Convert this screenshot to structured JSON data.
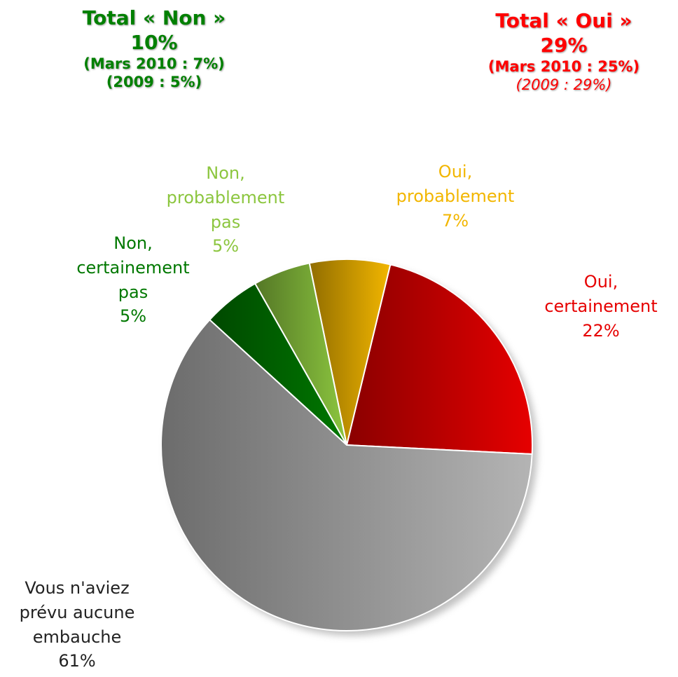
{
  "chart_data": {
    "type": "pie",
    "categories": [
      "Oui, certainement",
      "Oui, probablement",
      "Non, probablement pas",
      "Non, certainement pas",
      "Vous n'aviez prévu aucune embauche"
    ],
    "values": [
      22,
      7,
      5,
      5,
      61
    ],
    "value_labels": [
      "22%",
      "7%",
      "5%",
      "5%",
      "61%"
    ],
    "colors": [
      "#e60000",
      "#f2b600",
      "#8cc63f",
      "#007800",
      "#b4b4b4"
    ],
    "annotations": [
      {
        "lines": [
          "Total « Non »",
          "10%",
          "(Mars 2010 : 7%)",
          "(2009 : 5%)"
        ],
        "color": "#008000"
      },
      {
        "lines": [
          "Total « Oui »",
          "29%",
          "(Mars 2010 : 25%)",
          "(2009 : 29%)"
        ],
        "color": "#ff0000"
      }
    ]
  }
}
